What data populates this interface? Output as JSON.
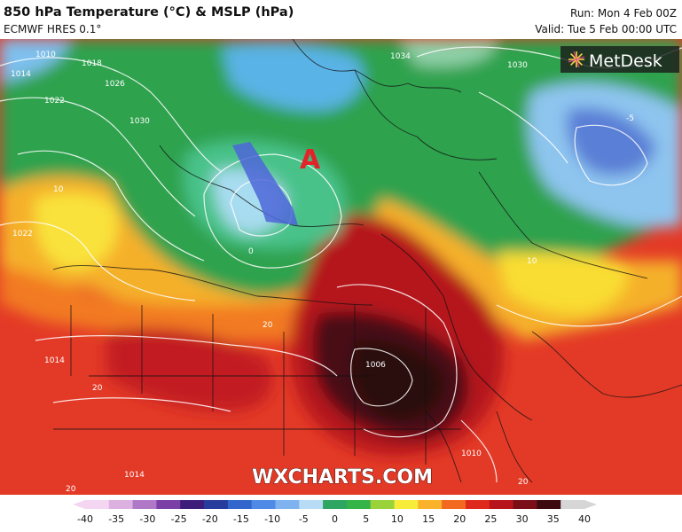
{
  "header": {
    "title": "850 hPa Temperature (°C) & MSLP (hPa)",
    "model": "ECMWF HRES 0.1°",
    "run": "Run: Mon 4 Feb 00Z",
    "valid": "Valid: Tue 5 Feb 00:00 UTC"
  },
  "map": {
    "brand_logo": "MetDesk",
    "watermark": "WXCHARTS.COM",
    "low_marker": "A",
    "isobar_labels": [
      "1010",
      "1014",
      "1018",
      "1026",
      "1022",
      "1030",
      "1022",
      "10",
      "1034",
      "1030",
      "10",
      "1014",
      "1006",
      "1014",
      "1010",
      "20",
      "20",
      "20",
      "20",
      "0",
      "-5"
    ]
  },
  "legend": {
    "ticks": [
      "-40",
      "-35",
      "-30",
      "-25",
      "-20",
      "-15",
      "-10",
      "-5",
      "0",
      "5",
      "10",
      "15",
      "20",
      "25",
      "30",
      "35",
      "40"
    ],
    "colors": [
      "#f4d6f2",
      "#dcb0e0",
      "#b079c8",
      "#7b3fa8",
      "#3e1d7a",
      "#283c9e",
      "#3366cc",
      "#4f8be6",
      "#7fb3ef",
      "#b8dcf5",
      "#2fa562",
      "#35b548",
      "#9ad23a",
      "#f7ec3a",
      "#f9b22a",
      "#f2691f",
      "#e0291d",
      "#b8141c",
      "#7a0f17",
      "#3c0a0f",
      "#d6d6d6"
    ]
  }
}
